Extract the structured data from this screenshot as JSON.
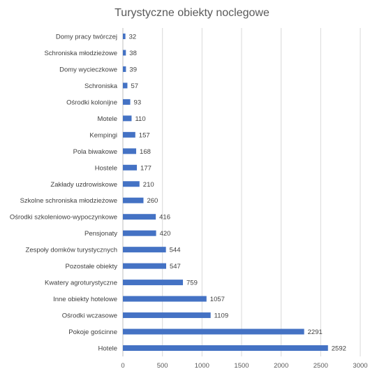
{
  "chart_data": {
    "type": "bar",
    "orientation": "horizontal",
    "title": "Turystyczne obiekty noclegowe",
    "categories": [
      "Domy pracy twórczej",
      "Schroniska młodzieżowe",
      "Domy wycieczkowe",
      "Schroniska",
      "Ośrodki kolonijne",
      "Motele",
      "Kempingi",
      "Pola biwakowe",
      "Hostele",
      "Zakłady uzdrowiskowe",
      "Szkolne schroniska młodzieżowe",
      "Ośrodki szkoleniowo-wypoczynkowe",
      "Pensjonaty",
      "Zespoły domków turystycznych",
      "Pozostałe obiekty",
      "Kwatery agroturystyczne",
      "Inne obiekty hotelowe",
      "Ośrodki wczasowe",
      "Pokoje gościnne",
      "Hotele"
    ],
    "values": [
      32,
      38,
      39,
      57,
      93,
      110,
      157,
      168,
      177,
      210,
      260,
      416,
      420,
      544,
      547,
      759,
      1057,
      1109,
      2291,
      2592
    ],
    "xlim": [
      0,
      3000
    ],
    "xticks": [
      0,
      500,
      1000,
      1500,
      2000,
      2500,
      3000
    ],
    "grid": true,
    "bar_color": "#4472C4",
    "data_labels": true
  }
}
